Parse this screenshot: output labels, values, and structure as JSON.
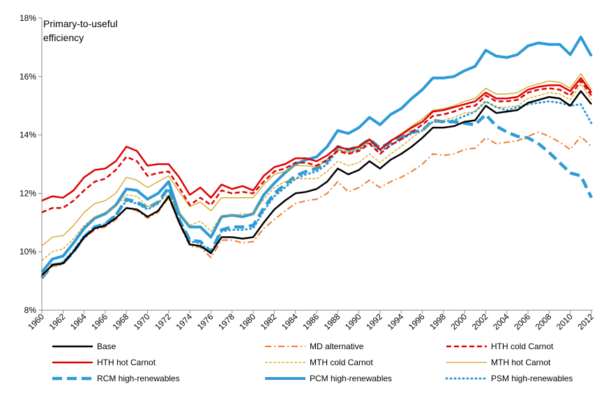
{
  "chart_data": {
    "type": "line",
    "annotation": "Primary-to-useful efficiency",
    "x": [
      1960,
      1961,
      1962,
      1963,
      1964,
      1965,
      1966,
      1967,
      1968,
      1969,
      1970,
      1971,
      1972,
      1973,
      1974,
      1975,
      1976,
      1977,
      1978,
      1979,
      1980,
      1981,
      1982,
      1983,
      1984,
      1985,
      1986,
      1987,
      1988,
      1989,
      1990,
      1991,
      1992,
      1993,
      1994,
      1995,
      1996,
      1997,
      1998,
      1999,
      2000,
      2001,
      2002,
      2003,
      2004,
      2005,
      2006,
      2007,
      2008,
      2009,
      2010,
      2011,
      2012
    ],
    "xlim": [
      1960,
      2012
    ],
    "xticks": [
      1960,
      1962,
      1964,
      1966,
      1968,
      1970,
      1972,
      1974,
      1976,
      1978,
      1980,
      1982,
      1984,
      1986,
      1988,
      1990,
      1992,
      1994,
      1996,
      1998,
      2000,
      2002,
      2004,
      2006,
      2008,
      2010,
      2012
    ],
    "ylim": [
      8,
      18
    ],
    "yticks": [
      {
        "value": 8,
        "label": "8%"
      },
      {
        "value": 10,
        "label": "10%"
      },
      {
        "value": 12,
        "label": "12%"
      },
      {
        "value": 14,
        "label": "14%"
      },
      {
        "value": 16,
        "label": "16%"
      },
      {
        "value": 18,
        "label": "18%"
      }
    ],
    "grid": false,
    "legend": "bottom",
    "series": [
      {
        "name": "Base",
        "color": "#000000",
        "style": "solid",
        "values": [
          9.2,
          9.55,
          9.6,
          10.0,
          10.5,
          10.8,
          10.9,
          11.15,
          11.5,
          11.45,
          11.2,
          11.4,
          11.9,
          11.0,
          10.25,
          10.2,
          9.95,
          10.5,
          10.5,
          10.45,
          10.5,
          11.0,
          11.45,
          11.75,
          12.0,
          12.05,
          12.15,
          12.4,
          12.85,
          12.65,
          12.8,
          13.1,
          12.85,
          13.15,
          13.35,
          13.6,
          13.9,
          14.25,
          14.25,
          14.3,
          14.45,
          14.5,
          15.0,
          14.75,
          14.8,
          14.85,
          15.1,
          15.2,
          15.3,
          15.25,
          15.0,
          15.5,
          15.05
        ]
      },
      {
        "name": "MD alternative",
        "color": "#ED7D31",
        "style": "dash-dot",
        "values": [
          9.15,
          9.5,
          9.55,
          10.0,
          10.45,
          10.75,
          10.85,
          11.1,
          11.5,
          11.4,
          11.15,
          11.35,
          11.85,
          10.95,
          10.2,
          10.15,
          9.8,
          10.4,
          10.4,
          10.3,
          10.35,
          10.8,
          11.1,
          11.4,
          11.65,
          11.75,
          11.8,
          12.0,
          12.4,
          12.05,
          12.2,
          12.45,
          12.2,
          12.4,
          12.55,
          12.75,
          13.0,
          13.35,
          13.3,
          13.35,
          13.5,
          13.55,
          13.9,
          13.7,
          13.75,
          13.8,
          13.95,
          14.1,
          13.95,
          13.75,
          13.5,
          13.95,
          13.6
        ]
      },
      {
        "name": "HTH cold Carnot",
        "color": "#E00000",
        "style": "dashed",
        "values": [
          11.35,
          11.5,
          11.5,
          11.75,
          12.1,
          12.4,
          12.5,
          12.8,
          13.25,
          13.1,
          12.6,
          12.7,
          12.75,
          12.2,
          11.6,
          11.85,
          11.6,
          12.1,
          12.0,
          12.05,
          12.0,
          12.4,
          12.75,
          12.85,
          13.05,
          13.05,
          12.95,
          13.15,
          13.45,
          13.35,
          13.45,
          13.7,
          13.35,
          13.65,
          13.85,
          14.1,
          14.35,
          14.65,
          14.7,
          14.8,
          14.95,
          15.0,
          15.35,
          15.15,
          15.15,
          15.2,
          15.45,
          15.55,
          15.6,
          15.55,
          15.35,
          15.85,
          15.35
        ]
      },
      {
        "name": "HTH hot Carnot",
        "color": "#E00000",
        "style": "solid",
        "values": [
          11.75,
          11.9,
          11.85,
          12.1,
          12.55,
          12.8,
          12.85,
          13.1,
          13.6,
          13.45,
          12.95,
          13.0,
          13.0,
          12.55,
          11.95,
          12.2,
          11.85,
          12.3,
          12.15,
          12.25,
          12.1,
          12.6,
          12.9,
          13.0,
          13.2,
          13.2,
          13.1,
          13.3,
          13.6,
          13.5,
          13.6,
          13.85,
          13.5,
          13.8,
          14.0,
          14.25,
          14.45,
          14.8,
          14.85,
          14.95,
          15.05,
          15.15,
          15.45,
          15.25,
          15.25,
          15.3,
          15.55,
          15.65,
          15.7,
          15.7,
          15.5,
          15.95,
          15.45
        ]
      },
      {
        "name": "MTH cold Carnot",
        "color": "#D4A017",
        "style": "thin-dashed",
        "values": [
          9.7,
          10.0,
          10.1,
          10.45,
          10.9,
          11.2,
          11.35,
          11.55,
          11.95,
          11.9,
          11.55,
          11.7,
          11.95,
          11.35,
          10.9,
          11.05,
          10.7,
          11.25,
          11.25,
          11.3,
          11.3,
          11.8,
          12.2,
          12.4,
          12.5,
          12.5,
          12.5,
          12.75,
          13.1,
          12.95,
          13.05,
          13.35,
          13.05,
          13.35,
          13.6,
          13.9,
          14.15,
          14.45,
          14.5,
          14.6,
          14.75,
          14.8,
          15.15,
          14.95,
          14.95,
          15.0,
          15.25,
          15.35,
          15.45,
          15.4,
          15.2,
          15.75,
          15.2
        ]
      },
      {
        "name": "MTH hot Carnot",
        "color": "#D4A017",
        "style": "thin",
        "values": [
          10.2,
          10.5,
          10.55,
          10.9,
          11.35,
          11.65,
          11.75,
          12.0,
          12.55,
          12.45,
          12.2,
          12.4,
          12.6,
          12.05,
          11.55,
          11.7,
          11.4,
          11.85,
          11.85,
          11.85,
          11.85,
          12.3,
          12.65,
          12.75,
          12.95,
          12.95,
          12.9,
          13.15,
          13.5,
          13.4,
          13.55,
          13.8,
          13.5,
          13.8,
          14.05,
          14.3,
          14.55,
          14.85,
          14.9,
          15.0,
          15.15,
          15.25,
          15.6,
          15.4,
          15.4,
          15.45,
          15.65,
          15.75,
          15.85,
          15.8,
          15.6,
          16.1,
          15.55
        ]
      },
      {
        "name": "RCM high-renewables",
        "color": "#2E9BD6",
        "style": "thick-dashed",
        "values": [
          9.1,
          9.55,
          9.6,
          10.0,
          10.5,
          10.85,
          10.95,
          11.25,
          11.8,
          11.7,
          11.5,
          11.7,
          12.2,
          11.1,
          10.4,
          10.35,
          10.0,
          10.75,
          10.85,
          10.85,
          10.9,
          11.5,
          12.0,
          12.3,
          12.6,
          12.75,
          12.85,
          13.1,
          13.6,
          13.5,
          13.6,
          13.85,
          13.55,
          13.75,
          13.9,
          14.1,
          14.15,
          14.5,
          14.45,
          14.45,
          14.4,
          14.35,
          14.7,
          14.3,
          14.1,
          13.95,
          13.9,
          13.7,
          13.4,
          13.05,
          12.7,
          12.6,
          11.85
        ]
      },
      {
        "name": "PCM high-renewables",
        "color": "#2E9BD6",
        "style": "thick",
        "values": [
          9.3,
          9.75,
          9.85,
          10.3,
          10.8,
          11.15,
          11.3,
          11.6,
          12.15,
          12.1,
          11.8,
          12.0,
          12.4,
          11.3,
          10.85,
          10.85,
          10.5,
          11.2,
          11.25,
          11.2,
          11.3,
          11.95,
          12.35,
          12.7,
          13.0,
          13.15,
          13.25,
          13.6,
          14.15,
          14.05,
          14.25,
          14.6,
          14.35,
          14.7,
          14.9,
          15.25,
          15.55,
          15.95,
          15.95,
          16.0,
          16.2,
          16.35,
          16.9,
          16.7,
          16.65,
          16.75,
          17.05,
          17.15,
          17.1,
          17.1,
          16.75,
          17.35,
          16.7
        ]
      },
      {
        "name": "PSM high-renewables",
        "color": "#2E9BD6",
        "style": "dotted",
        "values": [
          9.15,
          9.55,
          9.65,
          10.05,
          10.55,
          10.85,
          10.95,
          11.25,
          11.75,
          11.65,
          11.45,
          11.65,
          12.15,
          11.05,
          10.35,
          10.3,
          9.95,
          10.7,
          10.75,
          10.75,
          10.8,
          11.4,
          11.9,
          12.2,
          12.5,
          12.65,
          12.75,
          13.0,
          13.5,
          13.4,
          13.5,
          13.75,
          13.45,
          13.65,
          13.85,
          14.05,
          14.15,
          14.45,
          14.45,
          14.5,
          14.65,
          14.8,
          15.15,
          14.95,
          14.85,
          14.95,
          15.05,
          15.1,
          15.15,
          15.1,
          15.0,
          15.05,
          14.4
        ]
      }
    ]
  }
}
